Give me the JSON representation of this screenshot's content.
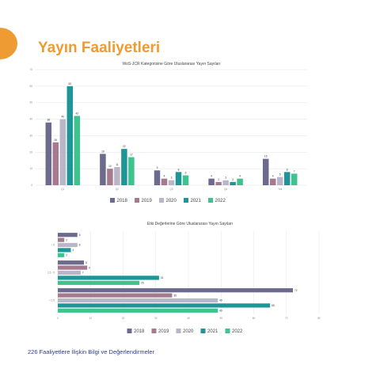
{
  "page": {
    "title": "Yayın Faaliyetleri",
    "footer": "226 Faaliyetlere İlişkin Bilgi ve Değerlendirmeler",
    "accent_color": "#ee9b33",
    "footer_color": "#2d3e8c"
  },
  "colors": {
    "2018": "#6c6a8e",
    "2019": "#a67a8e",
    "2020": "#b8b6c8",
    "2021": "#1e9597",
    "2022": "#3ec28e"
  },
  "chart_data": [
    {
      "type": "bar",
      "orientation": "vertical",
      "title": "WoS-JCR Kategorisine Göre Uluslararası Yayın Sayıları",
      "categories": [
        "Q1",
        "Q2",
        "Q3",
        "Q4",
        "Yok"
      ],
      "ylim": [
        0,
        70
      ],
      "yticks": [
        0,
        10,
        20,
        30,
        40,
        50,
        60,
        70
      ],
      "legend_position": "bottom",
      "grid": "horizontal",
      "series": [
        {
          "name": "2018",
          "values": [
            38,
            19,
            9,
            4,
            16
          ]
        },
        {
          "name": "2019",
          "values": [
            26,
            10,
            4,
            2,
            4
          ]
        },
        {
          "name": "2020",
          "values": [
            40,
            11,
            3,
            3,
            5
          ]
        },
        {
          "name": "2021",
          "values": [
            60,
            22,
            8,
            2,
            8
          ]
        },
        {
          "name": "2022",
          "values": [
            42,
            17,
            6,
            4,
            7
          ]
        }
      ]
    },
    {
      "type": "bar",
      "orientation": "horizontal",
      "title": "Etki Değerlerine Göre Uluslararası Yayın Sayıları",
      "categories": [
        "> 5",
        "2,5 - 5",
        "< 2,5"
      ],
      "xlim": [
        0,
        80
      ],
      "xticks": [
        0,
        10,
        20,
        30,
        40,
        50,
        60,
        70,
        80
      ],
      "legend_position": "bottom",
      "grid": "vertical",
      "series": [
        {
          "name": "2018",
          "values": [
            6,
            8,
            72
          ]
        },
        {
          "name": "2019",
          "values": [
            2,
            9,
            35
          ]
        },
        {
          "name": "2020",
          "values": [
            6,
            7,
            49
          ]
        },
        {
          "name": "2021",
          "values": [
            4,
            31,
            65
          ]
        },
        {
          "name": "2022",
          "values": [
            2,
            25,
            49
          ]
        }
      ]
    }
  ]
}
